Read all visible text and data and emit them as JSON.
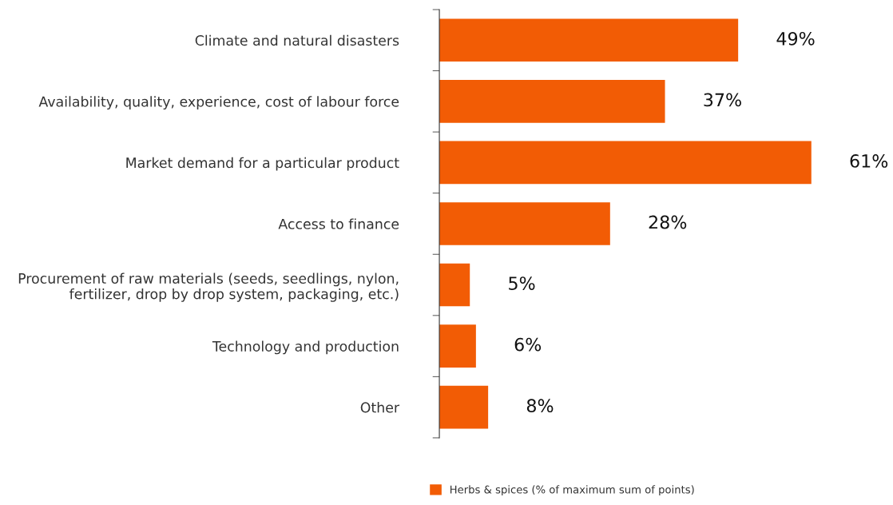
{
  "chart_data": {
    "type": "bar",
    "orientation": "horizontal",
    "categories": [
      "Climate and natural disasters",
      "Availability, quality, experience, cost of labour force",
      "Market demand for a particular product",
      "Access to finance",
      "Procurement of raw materials (seeds, seedlings, nylon,\nfertilizer, drop by drop system, packaging, etc.)",
      "Technology and production",
      "Other"
    ],
    "series": [
      {
        "name": "Herbs & spices (% of maximum sum of points)",
        "color": "#f25c05",
        "values": [
          49,
          37,
          61,
          28,
          5,
          6,
          8
        ],
        "value_labels": [
          "49%",
          "37%",
          "61%",
          "28%",
          "5%",
          "6%",
          "8%"
        ]
      }
    ],
    "legend": "bottom",
    "grid": false
  }
}
